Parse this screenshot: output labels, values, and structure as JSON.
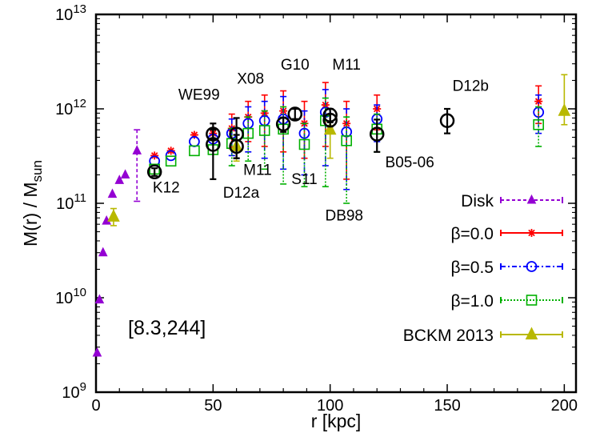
{
  "chart_data": {
    "type": "scatter",
    "xlabel": "r [kpc]",
    "ylabel_main": "M(r) / M",
    "ylabel_sub": "sun",
    "xlim": [
      0,
      205
    ],
    "ylim_log10": [
      9,
      13
    ],
    "x_ticks": [
      0,
      50,
      100,
      150,
      200
    ],
    "x_tick_labels": [
      "0",
      "50",
      "100",
      "150",
      "200"
    ],
    "y_ticks": [
      {
        "value": 1000000000.0,
        "base": "10",
        "exp": "9"
      },
      {
        "value": 10000000000.0,
        "base": "10",
        "exp": "10"
      },
      {
        "value": 100000000000.0,
        "base": "10",
        "exp": "11"
      },
      {
        "value": 1000000000000.0,
        "base": "10",
        "exp": "12"
      },
      {
        "value": 10000000000000.0,
        "base": "10",
        "exp": "13"
      }
    ],
    "range_label": "[8.3,244]",
    "legend_position": "bottom-right",
    "series": [
      {
        "name": "Disk",
        "color": "#9400d3",
        "marker": "triangle",
        "dash": "4,3",
        "points": [
          {
            "x": 0.5,
            "y": 2600000000.0
          },
          {
            "x": 1.5,
            "y": 9500000000.0
          },
          {
            "x": 3,
            "y": 30000000000.0
          },
          {
            "x": 4.5,
            "y": 65000000000.0
          },
          {
            "x": 7,
            "y": 125000000000.0
          },
          {
            "x": 10,
            "y": 175000000000.0
          },
          {
            "x": 12.5,
            "y": 200000000000.0
          },
          {
            "x": 17.5,
            "y": 360000000000.0,
            "lo": 105000000000.0,
            "hi": 600000000000.0
          }
        ]
      },
      {
        "name": "β=0.0",
        "color": "#ff0000",
        "marker": "star",
        "dash": "",
        "points": [
          {
            "x": 25,
            "y": 320000000000.0
          },
          {
            "x": 32,
            "y": 360000000000.0
          },
          {
            "x": 42,
            "y": 530000000000.0
          },
          {
            "x": 50,
            "y": 550000000000.0
          },
          {
            "x": 58,
            "y": 620000000000.0,
            "lo": 380000000000.0,
            "hi": 880000000000.0
          },
          {
            "x": 65,
            "y": 820000000000.0,
            "lo": 450000000000.0,
            "hi": 1200000000000.0
          },
          {
            "x": 72,
            "y": 900000000000.0,
            "lo": 400000000000.0,
            "hi": 1400000000000.0
          },
          {
            "x": 80,
            "y": 950000000000.0,
            "lo": 350000000000.0,
            "hi": 1550000000000.0
          },
          {
            "x": 89,
            "y": 700000000000.0,
            "lo": 300000000000.0,
            "hi": 1200000000000.0
          },
          {
            "x": 98,
            "y": 1100000000000.0,
            "lo": 400000000000.0,
            "hi": 1900000000000.0
          },
          {
            "x": 107,
            "y": 700000000000.0,
            "lo": 180000000000.0,
            "hi": 1200000000000.0
          },
          {
            "x": 120,
            "y": 1000000000000.0,
            "lo": 600000000000.0,
            "hi": 1400000000000.0
          },
          {
            "x": 189,
            "y": 1200000000000.0,
            "lo": 700000000000.0,
            "hi": 1750000000000.0
          }
        ]
      },
      {
        "name": "β=0.5",
        "color": "#0000ff",
        "marker": "circle",
        "dash": "6,3,2,3",
        "points": [
          {
            "x": 25,
            "y": 280000000000.0
          },
          {
            "x": 32,
            "y": 320000000000.0
          },
          {
            "x": 42,
            "y": 450000000000.0
          },
          {
            "x": 50,
            "y": 480000000000.0
          },
          {
            "x": 58,
            "y": 550000000000.0,
            "lo": 320000000000.0,
            "hi": 780000000000.0
          },
          {
            "x": 65,
            "y": 700000000000.0,
            "lo": 350000000000.0,
            "hi": 1050000000000.0
          },
          {
            "x": 72,
            "y": 750000000000.0,
            "lo": 300000000000.0,
            "hi": 1200000000000.0
          },
          {
            "x": 80,
            "y": 780000000000.0,
            "lo": 230000000000.0,
            "hi": 1350000000000.0
          },
          {
            "x": 89,
            "y": 550000000000.0,
            "lo": 200000000000.0,
            "hi": 950000000000.0
          },
          {
            "x": 98,
            "y": 920000000000.0,
            "lo": 250000000000.0,
            "hi": 1600000000000.0
          },
          {
            "x": 107,
            "y": 570000000000.0,
            "lo": 140000000000.0,
            "hi": 1000000000000.0
          },
          {
            "x": 120,
            "y": 780000000000.0,
            "lo": 450000000000.0,
            "hi": 1100000000000.0
          },
          {
            "x": 189,
            "y": 920000000000.0,
            "lo": 550000000000.0,
            "hi": 1400000000000.0
          }
        ]
      },
      {
        "name": "β=1.0",
        "color": "#00b000",
        "marker": "square",
        "dash": "2,2",
        "points": [
          {
            "x": 25,
            "y": 230000000000.0
          },
          {
            "x": 32,
            "y": 280000000000.0
          },
          {
            "x": 42,
            "y": 360000000000.0
          },
          {
            "x": 50,
            "y": 370000000000.0
          },
          {
            "x": 58,
            "y": 430000000000.0,
            "lo": 250000000000.0,
            "hi": 620000000000.0
          },
          {
            "x": 65,
            "y": 550000000000.0,
            "lo": 280000000000.0,
            "hi": 820000000000.0
          },
          {
            "x": 72,
            "y": 590000000000.0,
            "lo": 230000000000.0,
            "hi": 950000000000.0
          },
          {
            "x": 80,
            "y": 610000000000.0,
            "lo": 160000000000.0,
            "hi": 1050000000000.0
          },
          {
            "x": 89,
            "y": 420000000000.0,
            "lo": 150000000000.0,
            "hi": 700000000000.0
          },
          {
            "x": 98,
            "y": 750000000000.0,
            "lo": 150000000000.0,
            "hi": 1300000000000.0
          },
          {
            "x": 107,
            "y": 460000000000.0,
            "lo": 100000000000.0,
            "hi": 820000000000.0
          },
          {
            "x": 120,
            "y": 610000000000.0,
            "lo": 350000000000.0,
            "hi": 880000000000.0
          },
          {
            "x": 189,
            "y": 680000000000.0,
            "lo": 400000000000.0,
            "hi": 1050000000000.0
          }
        ]
      },
      {
        "name": "BCKM 2013",
        "color": "#b8b800",
        "marker": "triangle",
        "dash": "",
        "points": [
          {
            "x": 7.5,
            "y": 72000000000.0,
            "lo": 58000000000.0,
            "hi": 88000000000.0
          },
          {
            "x": 60,
            "y": 400000000000.0,
            "lo": 280000000000.0,
            "hi": 530000000000.0
          },
          {
            "x": 100,
            "y": 600000000000.0,
            "lo": 300000000000.0,
            "hi": 1000000000000.0
          },
          {
            "x": 200,
            "y": 950000000000.0,
            "lo": 680000000000.0,
            "hi": 2300000000000.0
          }
        ]
      }
    ],
    "observations": [
      {
        "x": 25,
        "y": 215000000000.0,
        "lo": 195000000000.0,
        "hi": 235000000000.0
      },
      {
        "x": 50,
        "y": 540000000000.0,
        "lo": 480000000000.0,
        "hi": 600000000000.0
      },
      {
        "x": 50,
        "y": 420000000000.0,
        "lo": 180000000000.0,
        "hi": 700000000000.0
      },
      {
        "x": 60,
        "y": 540000000000.0,
        "lo": 300000000000.0,
        "hi": 800000000000.0
      },
      {
        "x": 60,
        "y": 400000000000.0,
        "lo": 300000000000.0,
        "hi": 530000000000.0
      },
      {
        "x": 80,
        "y": 690000000000.0,
        "lo": 570000000000.0,
        "hi": 810000000000.0
      },
      {
        "x": 85,
        "y": 880000000000.0,
        "lo": 780000000000.0,
        "hi": 1000000000000.0
      },
      {
        "x": 100,
        "y": 860000000000.0,
        "lo": 720000000000.0,
        "hi": 1000000000000.0
      },
      {
        "x": 100,
        "y": 760000000000.0,
        "lo": 650000000000.0,
        "hi": 880000000000.0
      },
      {
        "x": 120,
        "y": 540000000000.0,
        "lo": 350000000000.0,
        "hi": 770000000000.0
      },
      {
        "x": 150,
        "y": 750000000000.0,
        "lo": 550000000000.0,
        "hi": 1000000000000.0
      }
    ],
    "annotations": [
      {
        "text": "K12",
        "x": 30,
        "y": 130000000000.0
      },
      {
        "text": "WE99",
        "x": 44,
        "y": 1250000000000.0
      },
      {
        "text": "X08",
        "x": 66,
        "y": 1850000000000.0
      },
      {
        "text": "G10",
        "x": 85,
        "y": 2600000000000.0
      },
      {
        "text": "M11",
        "x": 107,
        "y": 2600000000000.0
      },
      {
        "text": "D12b",
        "x": 160,
        "y": 1550000000000.0
      },
      {
        "text": "M11",
        "x": 69,
        "y": 200000000000.0
      },
      {
        "text": "S11",
        "x": 89,
        "y": 160000000000.0
      },
      {
        "text": "D12a",
        "x": 62,
        "y": 115000000000.0
      },
      {
        "text": "B05-06",
        "x": 134,
        "y": 240000000000.0
      },
      {
        "text": "DB98",
        "x": 106,
        "y": 66000000000.0
      }
    ]
  }
}
